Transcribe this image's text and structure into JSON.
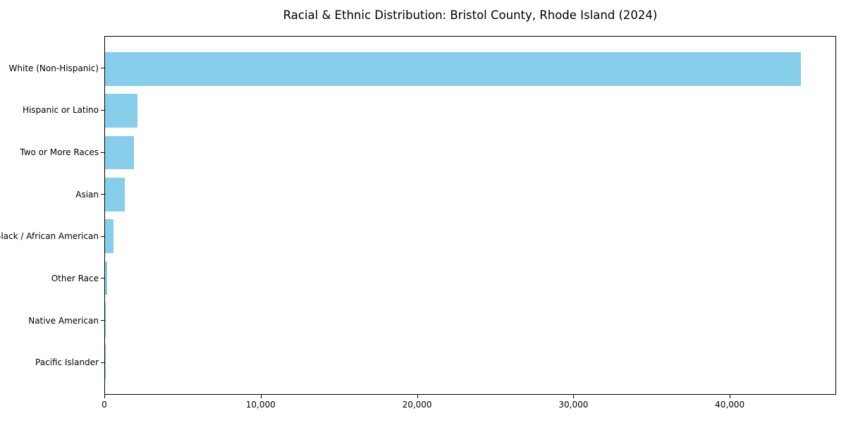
{
  "chart_data": {
    "type": "bar",
    "orientation": "horizontal",
    "title": "Racial & Ethnic Distribution: Bristol County, Rhode Island (2024)",
    "categories": [
      "White (Non-Hispanic)",
      "Hispanic or Latino",
      "Two or More Races",
      "Asian",
      "Black / African American",
      "Other Race",
      "Native American",
      "Pacific Islander"
    ],
    "values": [
      44600,
      2100,
      1870,
      1270,
      560,
      130,
      40,
      10
    ],
    "bar_color": "#87CEEB",
    "xlabel": "",
    "ylabel": "",
    "xlim": [
      0,
      46800
    ],
    "x_ticks": [
      {
        "value": 0,
        "label": "0"
      },
      {
        "value": 10000,
        "label": "10,000"
      },
      {
        "value": 20000,
        "label": "20,000"
      },
      {
        "value": 30000,
        "label": "30,000"
      },
      {
        "value": 40000,
        "label": "40,000"
      }
    ],
    "grid": false,
    "legend_position": "none",
    "background_color": "#ffffff",
    "text_color": "#000000"
  }
}
